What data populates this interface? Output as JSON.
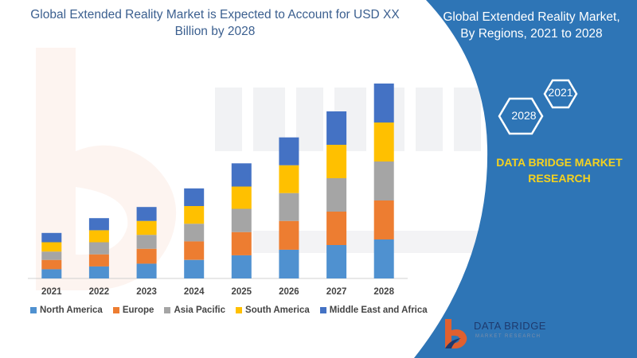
{
  "chart_data": {
    "type": "bar",
    "stacked": true,
    "title": "Global Extended Reality Market is Expected to Account for USD XX Billion by 2028",
    "categories": [
      "2021",
      "2022",
      "2023",
      "2024",
      "2025",
      "2026",
      "2027",
      "2028"
    ],
    "series": [
      {
        "name": "North America",
        "color": "#4f91d0",
        "values": [
          10,
          13,
          16,
          20,
          25,
          31,
          36,
          42
        ]
      },
      {
        "name": "Europe",
        "color": "#ed7d31",
        "values": [
          10,
          13,
          16,
          20,
          25,
          31,
          36,
          42
        ]
      },
      {
        "name": "Asia Pacific",
        "color": "#a5a5a5",
        "values": [
          9,
          13,
          15,
          19,
          25,
          30,
          36,
          42
        ]
      },
      {
        "name": "South America",
        "color": "#ffc000",
        "values": [
          10,
          13,
          15,
          19,
          24,
          30,
          36,
          42
        ]
      },
      {
        "name": "Middle East and Africa",
        "color": "#4472c4",
        "values": [
          10,
          13,
          15,
          19,
          25,
          30,
          36,
          42
        ]
      }
    ],
    "ylim": [
      0,
      210
    ],
    "grid": false,
    "legend_position": "bottom"
  },
  "side_panel": {
    "title": "Global Extended Reality Market, By Regions, 2021 to 2028",
    "hex_labels": [
      "2021",
      "2028"
    ],
    "brand_line1": "DATA BRIDGE MARKET",
    "brand_line2": "RESEARCH",
    "panel_color": "#2e75b6",
    "hex_outline_color": "#ffffff",
    "brand_color": "#f5d21f"
  },
  "logo": {
    "name": "DATA BRIDGE",
    "subtitle": "MARKET RESEARCH",
    "icon": "data-bridge-b-logo-icon"
  }
}
